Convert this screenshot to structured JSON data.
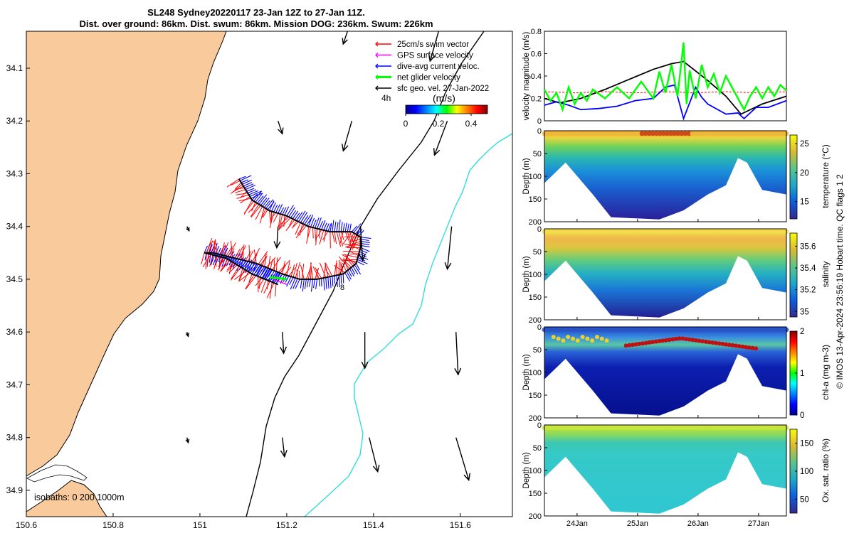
{
  "title": {
    "line1": "SL248 Sydney20220117 23-Jan 12Z to 27-Jan 11Z.",
    "line2": "Dist. over ground: 86km. Dist. swum: 86km. Mission DOG: 236km. Swum: 226km"
  },
  "footer": "© IMOS 13-Apr-2024 23:56:19 Hobart time. QC flags 1  2",
  "colors": {
    "land": "#f9cb9c",
    "swim": "#ff0000",
    "gps": "#ff00ff",
    "dive": "#0000ff",
    "net": "#00ff00",
    "geo": "#000000",
    "isobath_200": "#000000",
    "isobath_1000": "#33dddd"
  },
  "chart_data": [
    {
      "type": "map",
      "name": "track-map",
      "xlim": [
        150.6,
        151.72
      ],
      "ylim": [
        -34.95,
        -34.03
      ],
      "xticks": [
        150.6,
        150.8,
        151,
        151.2,
        151.4,
        151.6
      ],
      "xtick_labels": [
        "150.6",
        "150.8",
        "151",
        "151.2",
        "151.4",
        "151.6"
      ],
      "yticks": [
        -34.1,
        -34.2,
        -34.3,
        -34.4,
        -34.5,
        -34.6,
        -34.7,
        -34.8,
        -34.9
      ],
      "ytick_labels": [
        "34.1",
        "34.2",
        "34.3",
        "34.4",
        "34.5",
        "34.6",
        "34.7",
        "34.8",
        "34.9"
      ],
      "legend": [
        {
          "label": "25cm/s swim vector",
          "color": "#ff0000"
        },
        {
          "label": "GPS surface velocity",
          "color": "#ff00ff"
        },
        {
          "label": "dive-avg current veloc.",
          "color": "#0000ff"
        },
        {
          "label": "net glider velocity",
          "color": "#00ff00"
        },
        {
          "label": "sfc geo. vel. 27-Jan-2022",
          "color": "#000000"
        }
      ],
      "time_marker": "4h",
      "colorbar": {
        "label": "(m/s)",
        "range": [
          0,
          0.5
        ],
        "ticks": [
          0,
          0.2,
          0.4
        ],
        "tick_labels": [
          "0",
          "0.2",
          "0.4"
        ]
      },
      "isobath_label": "isobaths: 0  200  1000m",
      "track_label": "8",
      "track": [
        [
          151.09,
          -34.31
        ],
        [
          151.12,
          -34.35
        ],
        [
          151.16,
          -34.37
        ],
        [
          151.2,
          -34.38
        ],
        [
          151.25,
          -34.4
        ],
        [
          151.3,
          -34.41
        ],
        [
          151.35,
          -34.41
        ],
        [
          151.37,
          -34.42
        ],
        [
          151.37,
          -34.44
        ],
        [
          151.36,
          -34.47
        ],
        [
          151.33,
          -34.49
        ],
        [
          151.27,
          -34.5
        ],
        [
          151.23,
          -34.5
        ],
        [
          151.19,
          -34.49
        ],
        [
          151.13,
          -34.47
        ],
        [
          151.08,
          -34.46
        ],
        [
          151.03,
          -34.45
        ],
        [
          151.01,
          -34.45
        ],
        [
          151.06,
          -34.46
        ],
        [
          151.12,
          -34.49
        ],
        [
          151.18,
          -34.51
        ]
      ],
      "geo_vectors": [
        {
          "lon": 150.97,
          "lat": -34.4,
          "u": 0.005,
          "v": -0.01
        },
        {
          "lon": 150.97,
          "lat": -34.6,
          "u": 0.003,
          "v": -0.01
        },
        {
          "lon": 150.97,
          "lat": -34.8,
          "u": 0.003,
          "v": -0.012
        },
        {
          "lon": 151.18,
          "lat": -34.2,
          "u": 0.01,
          "v": -0.03
        },
        {
          "lon": 151.18,
          "lat": -34.4,
          "u": -0.003,
          "v": -0.05
        },
        {
          "lon": 151.19,
          "lat": -34.6,
          "u": 0.003,
          "v": -0.05
        },
        {
          "lon": 151.19,
          "lat": -34.8,
          "u": 0.005,
          "v": -0.045
        },
        {
          "lon": 151.35,
          "lat": -34.2,
          "u": -0.02,
          "v": -0.07
        },
        {
          "lon": 151.37,
          "lat": -34.4,
          "u": 0.005,
          "v": -0.08
        },
        {
          "lon": 151.38,
          "lat": -34.6,
          "u": 0.0,
          "v": -0.085
        },
        {
          "lon": 151.39,
          "lat": -34.8,
          "u": 0.02,
          "v": -0.08
        },
        {
          "lon": 151.34,
          "lat": -34.03,
          "u": -0.01,
          "v": -0.03
        },
        {
          "lon": 151.55,
          "lat": -34.03,
          "u": -0.02,
          "v": -0.07
        },
        {
          "lon": 151.57,
          "lat": -34.2,
          "u": -0.03,
          "v": -0.08
        },
        {
          "lon": 151.58,
          "lat": -34.4,
          "u": -0.01,
          "v": -0.1
        },
        {
          "lon": 151.59,
          "lat": -34.6,
          "u": 0.005,
          "v": -0.1
        },
        {
          "lon": 151.59,
          "lat": -34.8,
          "u": 0.03,
          "v": -0.1
        }
      ]
    },
    {
      "type": "line",
      "name": "velocity-panel",
      "ylabel": "velocity magnitude (m/s)",
      "xlim": [
        0,
        4
      ],
      "ylim": [
        0,
        0.8
      ],
      "yticks": [
        0,
        0.2,
        0.4,
        0.6,
        0.8
      ],
      "ytick_labels": [
        "0",
        "0.2",
        "0.4",
        "0.6",
        "0.8"
      ],
      "series": [
        {
          "name": "sfc geo. vel.",
          "color": "#000000",
          "x": [
            0,
            0.25,
            0.6,
            1.0,
            1.4,
            1.8,
            2.1,
            2.3,
            2.7,
            3.0,
            3.25,
            3.6,
            4.0
          ],
          "y": [
            0.2,
            0.16,
            0.2,
            0.28,
            0.37,
            0.46,
            0.51,
            0.53,
            0.36,
            0.22,
            0.06,
            0.15,
            0.22
          ]
        },
        {
          "name": "swim speed",
          "color": "#ff0000",
          "x": [
            0,
            0.5,
            1.0,
            1.5,
            2.0,
            2.5,
            3.0,
            3.5,
            4.0
          ],
          "y": [
            0.26,
            0.25,
            0.26,
            0.25,
            0.26,
            0.25,
            0.26,
            0.25,
            0.26
          ]
        },
        {
          "name": "dive-avg current",
          "color": "#0000ff",
          "x": [
            0,
            0.2,
            0.4,
            0.6,
            0.9,
            1.2,
            1.5,
            1.8,
            2.0,
            2.15,
            2.3,
            2.5,
            2.6,
            2.7,
            3.0,
            3.2,
            3.3,
            3.5,
            3.7,
            4.0
          ],
          "y": [
            0.14,
            0.17,
            0.14,
            0.1,
            0.11,
            0.13,
            0.18,
            0.2,
            0.3,
            0.32,
            0.02,
            0.3,
            0.21,
            0.15,
            0.06,
            0.07,
            0.02,
            0.12,
            0.12,
            0.18
          ]
        },
        {
          "name": "net glider velocity",
          "color": "#00ff00",
          "x": [
            0,
            0.1,
            0.2,
            0.3,
            0.4,
            0.5,
            0.6,
            0.7,
            0.8,
            1.0,
            1.2,
            1.4,
            1.6,
            1.8,
            1.9,
            2.0,
            2.1,
            2.2,
            2.3,
            2.35,
            2.4,
            2.5,
            2.6,
            2.7,
            2.8,
            2.9,
            3.0,
            3.1,
            3.2,
            3.3,
            3.4,
            3.5,
            3.6,
            3.7,
            3.8,
            3.9,
            4.0
          ],
          "y": [
            0.28,
            0.18,
            0.25,
            0.1,
            0.3,
            0.15,
            0.25,
            0.18,
            0.28,
            0.2,
            0.3,
            0.2,
            0.35,
            0.2,
            0.44,
            0.25,
            0.5,
            0.22,
            0.7,
            0.15,
            0.45,
            0.2,
            0.5,
            0.3,
            0.42,
            0.25,
            0.4,
            0.3,
            0.2,
            0.1,
            0.22,
            0.3,
            0.2,
            0.3,
            0.22,
            0.32,
            0.27
          ]
        }
      ]
    },
    {
      "type": "heatmap",
      "name": "temperature-section",
      "ylabel": "Depth (m)",
      "ylim": [
        200,
        0
      ],
      "yticks": [
        0,
        50,
        100,
        150,
        200
      ],
      "colorbar_label": "temperature (°C)",
      "clim": [
        12,
        26.5
      ],
      "cticks": [
        15,
        20,
        25
      ],
      "profile_depth_max_m": [
        [
          0,
          115
        ],
        [
          0.35,
          70
        ],
        [
          0.8,
          140
        ],
        [
          1.1,
          190
        ],
        [
          1.9,
          195
        ],
        [
          2.3,
          175
        ],
        [
          2.7,
          140
        ],
        [
          3.0,
          120
        ],
        [
          3.2,
          60
        ],
        [
          3.35,
          70
        ],
        [
          3.6,
          130
        ],
        [
          4.0,
          140
        ]
      ],
      "xlim": [
        0,
        4
      ],
      "xticks": [
        0.54,
        1.54,
        2.54,
        3.54
      ],
      "xtick_labels": [
        "24Jan",
        "25Jan",
        "26Jan",
        "27Jan"
      ]
    },
    {
      "type": "heatmap",
      "name": "salinity-section",
      "ylabel": "Depth (m)",
      "ylim": [
        200,
        0
      ],
      "yticks": [
        0,
        50,
        100,
        150,
        200
      ],
      "colorbar_label": "salinity",
      "clim": [
        34.95,
        35.72
      ],
      "cticks": [
        35,
        35.2,
        35.4,
        35.6
      ],
      "profile_depth_max_m": [
        [
          0,
          115
        ],
        [
          0.35,
          70
        ],
        [
          0.8,
          140
        ],
        [
          1.1,
          190
        ],
        [
          1.9,
          195
        ],
        [
          2.3,
          175
        ],
        [
          2.7,
          140
        ],
        [
          3.0,
          120
        ],
        [
          3.2,
          60
        ],
        [
          3.35,
          70
        ],
        [
          3.6,
          130
        ],
        [
          4.0,
          140
        ]
      ],
      "xlim": [
        0,
        4
      ],
      "xticks": [
        0.54,
        1.54,
        2.54,
        3.54
      ],
      "xtick_labels": [
        "24Jan",
        "25Jan",
        "26Jan",
        "27Jan"
      ]
    },
    {
      "type": "heatmap",
      "name": "chla-section",
      "ylabel": "Depth (m)",
      "ylim": [
        200,
        0
      ],
      "yticks": [
        0,
        50,
        100,
        150,
        200
      ],
      "colorbar_label": "chl-a (mg m-3)",
      "clim": [
        0,
        2
      ],
      "cticks": [
        0,
        1,
        2
      ],
      "profile_depth_max_m": [
        [
          0,
          115
        ],
        [
          0.35,
          70
        ],
        [
          0.8,
          140
        ],
        [
          1.1,
          190
        ],
        [
          1.9,
          195
        ],
        [
          2.3,
          175
        ],
        [
          2.7,
          140
        ],
        [
          3.0,
          120
        ],
        [
          3.2,
          60
        ],
        [
          3.35,
          70
        ],
        [
          3.6,
          130
        ],
        [
          4.0,
          140
        ]
      ],
      "xlim": [
        0,
        4
      ],
      "xticks": [
        0.54,
        1.54,
        2.54,
        3.54
      ],
      "xtick_labels": [
        "24Jan",
        "25Jan",
        "26Jan",
        "27Jan"
      ]
    },
    {
      "type": "heatmap",
      "name": "oxygen-section",
      "ylabel": "Depth (m)",
      "ylim": [
        200,
        0
      ],
      "yticks": [
        0,
        50,
        100,
        150,
        200
      ],
      "colorbar_label": "Ox. sat. ratio (%)",
      "clim": [
        25,
        175
      ],
      "cticks": [
        50,
        100,
        150
      ],
      "profile_depth_max_m": [
        [
          0,
          115
        ],
        [
          0.35,
          70
        ],
        [
          0.8,
          140
        ],
        [
          1.1,
          190
        ],
        [
          1.9,
          195
        ],
        [
          2.3,
          175
        ],
        [
          2.7,
          140
        ],
        [
          3.0,
          120
        ],
        [
          3.2,
          60
        ],
        [
          3.35,
          70
        ],
        [
          3.6,
          130
        ],
        [
          4.0,
          140
        ]
      ],
      "xlim": [
        0,
        4
      ],
      "xticks": [
        0.54,
        1.54,
        2.54,
        3.54
      ],
      "xtick_labels": [
        "24Jan",
        "25Jan",
        "26Jan",
        "27Jan"
      ]
    }
  ]
}
